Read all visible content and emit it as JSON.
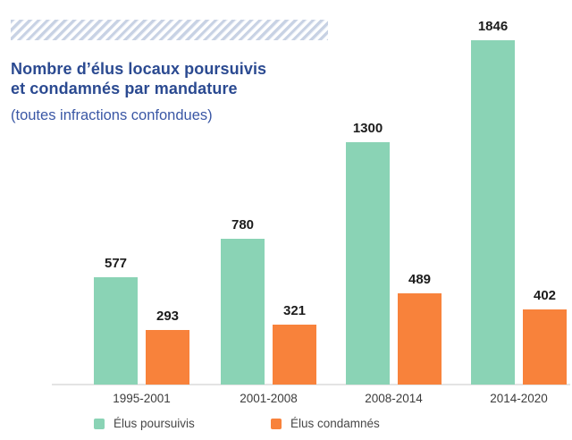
{
  "decoration": {
    "hatch_color": "#c8d2e4"
  },
  "header": {
    "title_line1": "Nombre d’élus locaux poursuivis",
    "title_line2": "et condamnés par mandature",
    "subtitle": "(toutes infractions confondues)",
    "title_color": "#2b4a91"
  },
  "chart_data": {
    "type": "bar",
    "title": "Nombre d’élus locaux poursuivis et condamnés par mandature (toutes infractions confondues)",
    "categories": [
      "1995-2001",
      "2001-2008",
      "2008-2014",
      "2014-2020"
    ],
    "series": [
      {
        "name": "Élus poursuivis",
        "color": "#8ad3b5",
        "values": [
          577,
          780,
          1300,
          1846
        ]
      },
      {
        "name": "Élus condamnés",
        "color": "#f8823b",
        "values": [
          293,
          321,
          489,
          402
        ]
      }
    ],
    "xlabel": "",
    "ylabel": "",
    "ylim": [
      0,
      1846
    ],
    "grid": false,
    "value_labels": true,
    "legend_position": "bottom"
  },
  "legend": {
    "items": [
      {
        "label": "Élus poursuivis",
        "color": "#8ad3b5"
      },
      {
        "label": "Élus condamnés",
        "color": "#f8823b"
      }
    ]
  }
}
